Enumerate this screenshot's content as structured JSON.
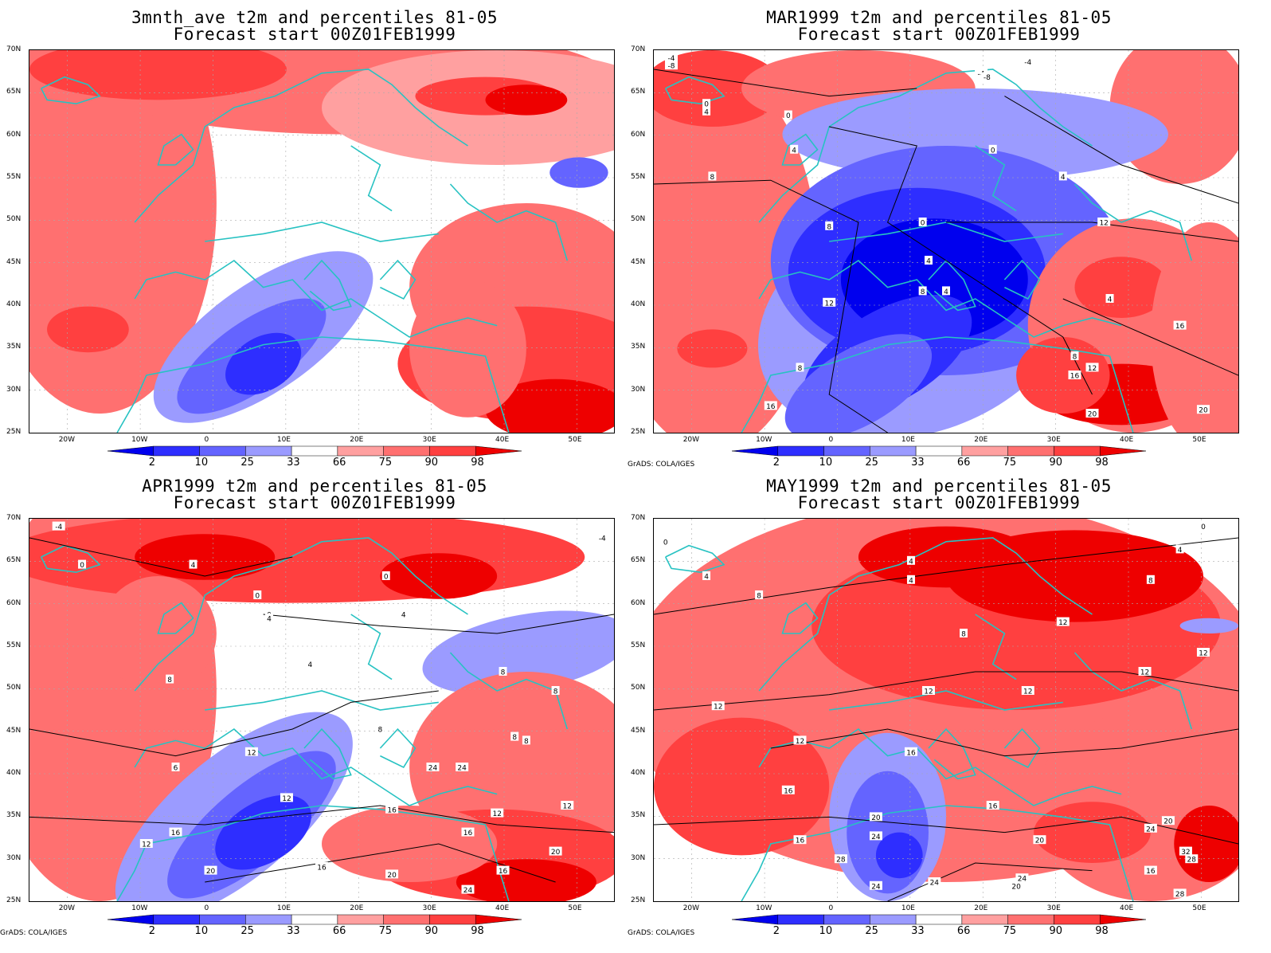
{
  "panels": [
    {
      "id": "p1",
      "title_line1": "3mnth_ave t2m and percentiles 81-05",
      "title_line2": "Forecast start 00Z01FEB1999",
      "credit": "",
      "contours": []
    },
    {
      "id": "p2",
      "title_line1": "MAR1999 t2m and percentiles 81-05",
      "title_line2": "Forecast start 00Z01FEB1999",
      "credit": "GrADS: COLA/IGES",
      "contours": [
        "-4",
        "-8",
        "0",
        "4",
        "8",
        "0",
        "4",
        "8",
        "-4",
        "4",
        "0",
        "4",
        "8",
        "12",
        "8",
        "12",
        "16",
        "0",
        "4",
        "4",
        "8",
        "12",
        "16",
        "20",
        "16",
        "20",
        "-8",
        "-4"
      ]
    },
    {
      "id": "p3",
      "title_line1": "APR1999 t2m and percentiles 81-05",
      "title_line2": "Forecast start 00Z01FEB1999",
      "credit": "GrADS: COLA/IGES",
      "contours": [
        "-4",
        "0",
        "4",
        "0",
        "0",
        "4",
        "0",
        "4",
        "8",
        "4",
        "8",
        "8",
        "6",
        "12",
        "8",
        "8",
        "12",
        "16",
        "12",
        "16",
        "12",
        "16",
        "20",
        "20",
        "24",
        "16",
        "12",
        "20",
        "24",
        "24",
        "16",
        "8",
        "-4"
      ]
    },
    {
      "id": "p4",
      "title_line1": "MAY1999 t2m and percentiles 81-05",
      "title_line2": "Forecast start 00Z01FEB1999",
      "credit": "GrADS: COLA/IGES",
      "contours": [
        "0",
        "4",
        "8",
        "4",
        "4",
        "8",
        "12",
        "8",
        "12",
        "12",
        "12",
        "16",
        "16",
        "12",
        "16",
        "12",
        "20",
        "24",
        "16",
        "20",
        "24",
        "24",
        "28",
        "24",
        "20",
        "24",
        "16",
        "20",
        "32",
        "28",
        "28",
        "0",
        "4",
        "12"
      ]
    }
  ],
  "axes": {
    "lat_labels": [
      "70N",
      "65N",
      "60N",
      "55N",
      "50N",
      "45N",
      "40N",
      "35N",
      "30N",
      "25N"
    ],
    "lon_labels": [
      "20W",
      "10W",
      "0",
      "10E",
      "20E",
      "30E",
      "40E",
      "50E"
    ]
  },
  "colorbar": {
    "labels": [
      "2",
      "10",
      "25",
      "33",
      "66",
      "75",
      "90",
      "98"
    ],
    "colors": [
      "#0000ee",
      "#2e2eff",
      "#6464ff",
      "#9b9bff",
      "#ffffff",
      "#ffa0a0",
      "#ff7070",
      "#ff4040",
      "#ee0000"
    ]
  },
  "colors": {
    "coastline": "#27c2c2",
    "grid": "#aaaaaa",
    "frame": "#000000"
  }
}
